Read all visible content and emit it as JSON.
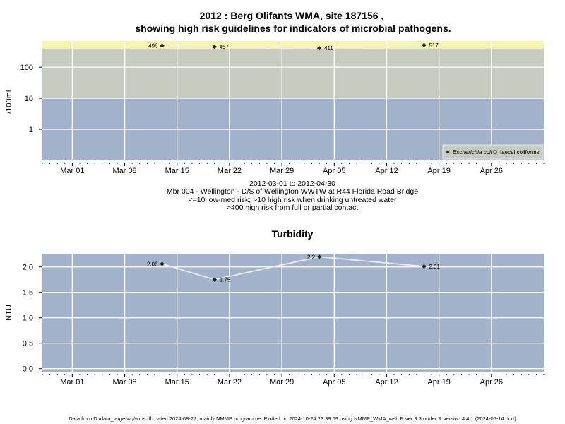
{
  "charts_text": {
    "title_line1": "2012 : Berg Olifants WMA, site 187156 ,",
    "title_line2": "showing high risk guidelines for indicators of microbial pathogens.",
    "date_range": "2012-03-01 to 2012-04-30",
    "site_desc": "Mbr 004 - Wellington - D/S of Wellington WWTW at R44 Florida Road Bridge",
    "guideline_1": "<=10 low-med risk; >10 high risk when drinking untreated water",
    "guideline_2": ">400 high risk from full or partial contact",
    "footer": "Data from D:/data_large/wq/wms.db dated 2024-08-27, mainly NMMP programme. Plotted on 2024-10-24 23:39:59 using NMMP_WMA_web.R ver 9.3 under R version 4.4.1 (2024-06-14 ucrt)"
  },
  "colors": {
    "panel_low": "#a2b2cb",
    "panel_mid": "#c5cbbf",
    "panel_high": "#f6f5ad",
    "grid": "#ffffff",
    "line": "#ececec",
    "point": "#222222"
  },
  "chart_data": [
    {
      "type": "line",
      "title": "",
      "xlabel": "",
      "ylabel": "/100mL",
      "y_scale": "log",
      "xlim": [
        "2012-02-26",
        "2012-05-03"
      ],
      "x_ticks": [
        "2012-03-01",
        "2012-03-08",
        "2012-03-15",
        "2012-03-22",
        "2012-03-29",
        "2012-04-05",
        "2012-04-12",
        "2012-04-19",
        "2012-04-26"
      ],
      "x_tick_labels": [
        "Mar 01",
        "Mar 08",
        "Mar 15",
        "Mar 22",
        "Mar 29",
        "Apr 05",
        "Apr 12",
        "Apr 19",
        "Apr 26"
      ],
      "y_ticks": [
        1,
        10,
        100
      ],
      "y_tick_labels": [
        "1",
        "10",
        "100"
      ],
      "ylim": [
        0.1,
        700
      ],
      "bands": [
        {
          "from": 0.1,
          "to": 10,
          "color": "#a2b2cb"
        },
        {
          "from": 10,
          "to": 400,
          "color": "#c5cbbf"
        },
        {
          "from": 400,
          "to": 700,
          "color": "#f6f5ad"
        }
      ],
      "series": [
        {
          "name": "Escherichia coli",
          "x": [
            "2012-03-13",
            "2012-03-20",
            "2012-04-03",
            "2012-04-17"
          ],
          "values": [
            496,
            457,
            411,
            517
          ],
          "labels": [
            "496",
            "457",
            "411",
            "517"
          ]
        }
      ],
      "legend": {
        "position": "bottom-right",
        "items": [
          "Escherichia coli",
          "faecal coliforms"
        ]
      },
      "grid": true
    },
    {
      "type": "line",
      "title": "Turbidity",
      "xlabel": "",
      "ylabel": "NTU",
      "xlim": [
        "2012-02-26",
        "2012-05-03"
      ],
      "x_ticks": [
        "2012-03-01",
        "2012-03-08",
        "2012-03-15",
        "2012-03-22",
        "2012-03-29",
        "2012-04-05",
        "2012-04-12",
        "2012-04-19",
        "2012-04-26"
      ],
      "x_tick_labels": [
        "Mar 01",
        "Mar 08",
        "Mar 15",
        "Mar 22",
        "Mar 29",
        "Apr 05",
        "Apr 12",
        "Apr 19",
        "Apr 26"
      ],
      "y_ticks": [
        0,
        0.5,
        1,
        1.5,
        2
      ],
      "y_tick_labels": [
        "0.0",
        "0.5",
        "1.0",
        "1.5",
        "2.0"
      ],
      "ylim": [
        -0.06,
        2.26
      ],
      "series": [
        {
          "name": "",
          "x": [
            "2012-03-13",
            "2012-03-20",
            "2012-04-03",
            "2012-04-17"
          ],
          "values": [
            2.06,
            1.75,
            2.2,
            2.01
          ],
          "labels": [
            "2.06",
            "1.75",
            "2.2",
            "2.01"
          ]
        }
      ],
      "grid": true
    }
  ]
}
